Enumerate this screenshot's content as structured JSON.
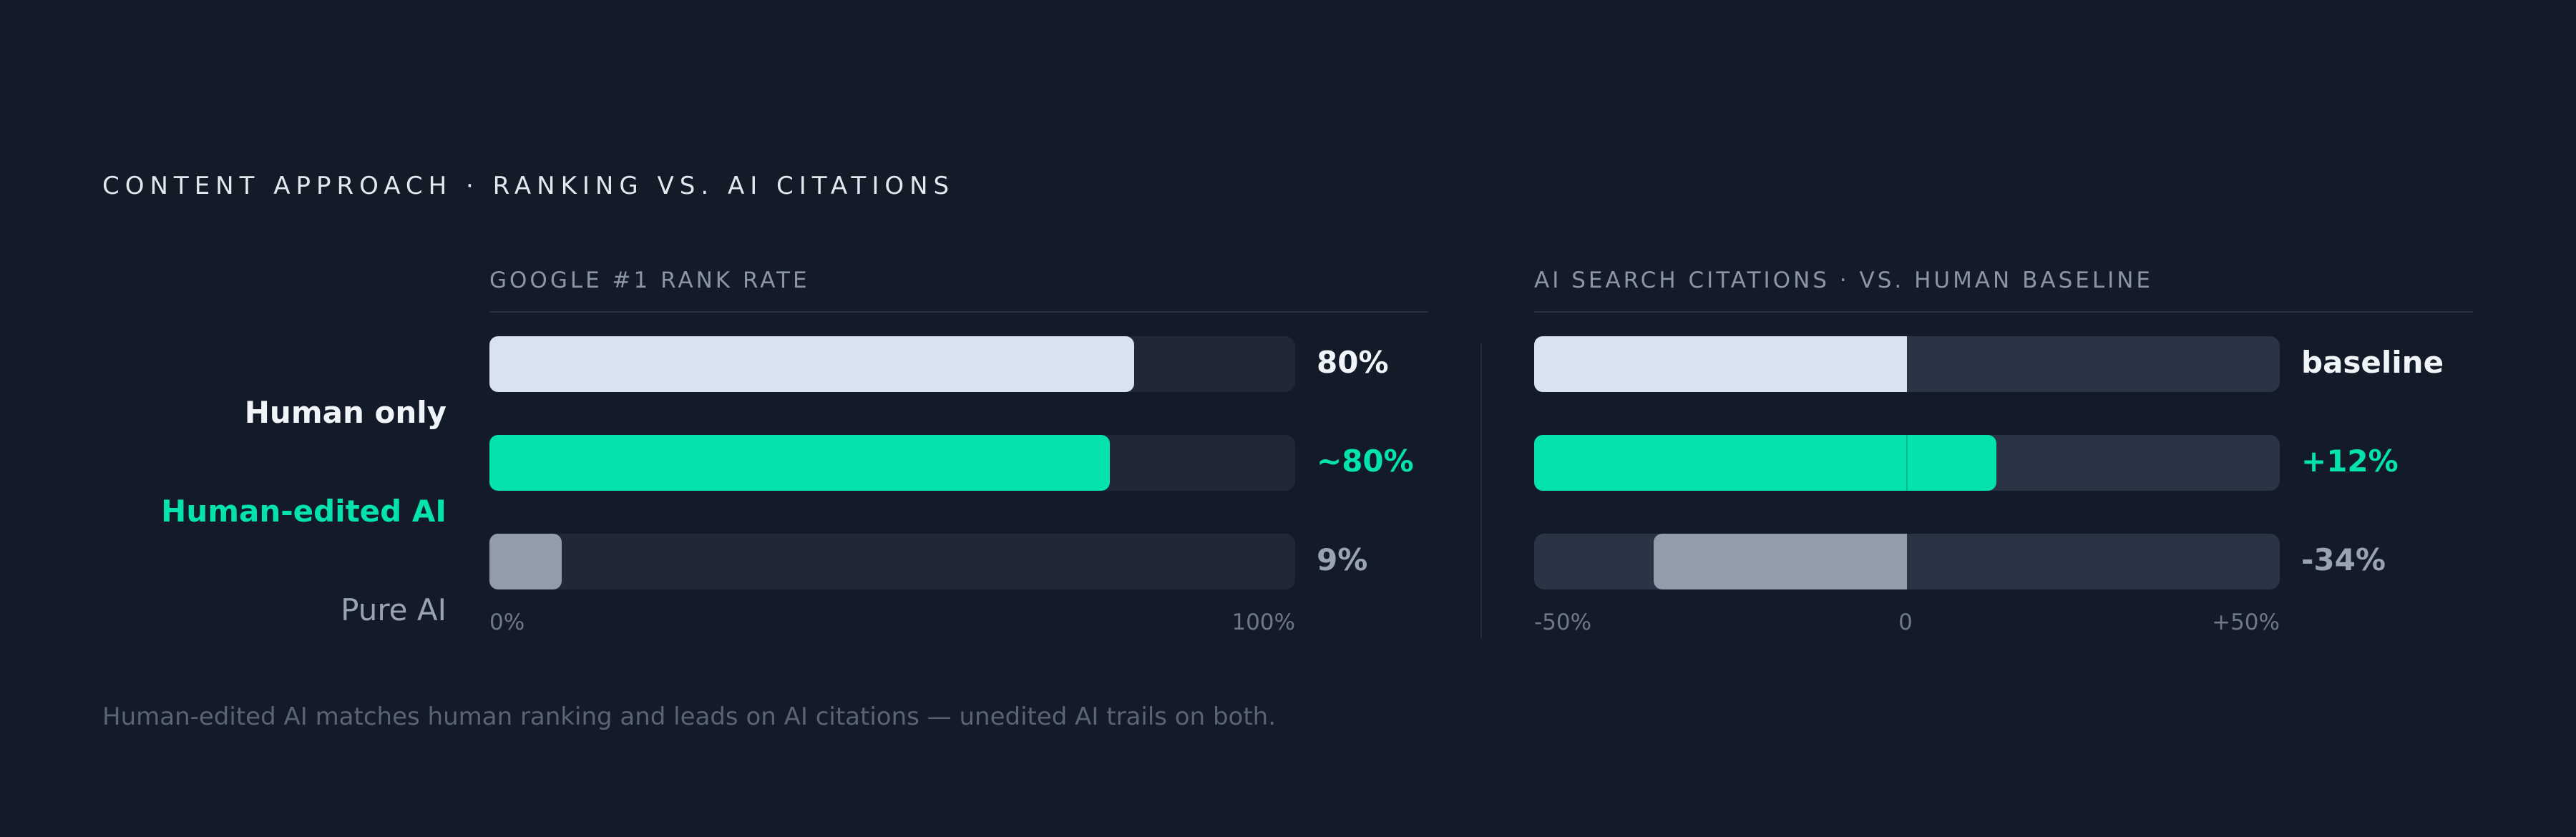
{
  "title": "CONTENT APPROACH · RANKING VS. AI CITATIONS",
  "footnote": "Human-edited AI matches human ranking and leads on AI citations — unedited AI trails on both.",
  "colors": {
    "background": "#131a28",
    "human": "#d8e3ef",
    "edited": "#04e3ae",
    "pure": "#929cab",
    "track_left": "#202838",
    "track_right": "#2a3444"
  },
  "rows": [
    {
      "label": "Human only",
      "color": "#f1f4f8",
      "weight": "bold"
    },
    {
      "label": "Human-edited AI",
      "color": "#04e3ae",
      "weight": "bold"
    },
    {
      "label": "Pure AI",
      "color": "#9aa3b1",
      "weight": "normal"
    }
  ],
  "chart_data": [
    {
      "type": "bar",
      "orientation": "horizontal",
      "title": "GOOGLE #1 RANK RATE",
      "categories": [
        "Human only",
        "Human-edited AI",
        "Pure AI"
      ],
      "values": [
        80,
        77,
        9
      ],
      "value_labels": [
        "80%",
        "~80%",
        "9%"
      ],
      "xlim": [
        0,
        100
      ],
      "ticks": [
        "0%",
        "100%"
      ],
      "grid": false
    },
    {
      "type": "bar",
      "orientation": "horizontal",
      "diverging": true,
      "title": "AI SEARCH CITATIONS · VS. HUMAN BASELINE",
      "categories": [
        "Human only",
        "Human-edited AI",
        "Pure AI"
      ],
      "values": [
        0,
        12,
        -34
      ],
      "value_labels": [
        "baseline",
        "+12%",
        "-34%"
      ],
      "xlim": [
        -50,
        50
      ],
      "ticks": [
        "-50%",
        "0",
        "+50%"
      ],
      "grid": false
    }
  ]
}
